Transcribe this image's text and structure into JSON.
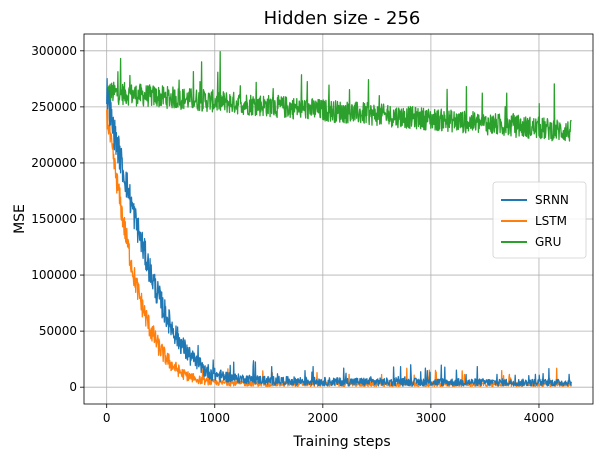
{
  "chart_data": {
    "type": "line",
    "title": "Hidden size - 256",
    "xlabel": "Training steps",
    "ylabel": "MSE",
    "xlim": [
      -210,
      4500
    ],
    "ylim": [
      -15000,
      315000
    ],
    "xticks": [
      0,
      1000,
      2000,
      3000,
      4000
    ],
    "yticks": [
      0,
      50000,
      100000,
      150000,
      200000,
      250000,
      300000
    ],
    "grid": true,
    "legend_position": "center-right",
    "x_max": 4300,
    "series": [
      {
        "name": "SRNN",
        "color": "#1f77b4",
        "center": [
          [
            0,
            265000
          ],
          [
            50,
            235000
          ],
          [
            100,
            215000
          ],
          [
            150,
            195000
          ],
          [
            200,
            175000
          ],
          [
            250,
            155000
          ],
          [
            300,
            137000
          ],
          [
            350,
            120000
          ],
          [
            400,
            104000
          ],
          [
            450,
            89000
          ],
          [
            500,
            76000
          ],
          [
            550,
            64000
          ],
          [
            600,
            54000
          ],
          [
            650,
            45000
          ],
          [
            700,
            37000
          ],
          [
            750,
            30000
          ],
          [
            800,
            24000
          ],
          [
            900,
            16000
          ],
          [
            1000,
            11000
          ],
          [
            1200,
            8000
          ],
          [
            1500,
            6000
          ],
          [
            2000,
            5000
          ],
          [
            3000,
            4500
          ],
          [
            4300,
            4000
          ]
        ],
        "spread": [
          [
            0,
            15000
          ],
          [
            500,
            12000
          ],
          [
            900,
            7000
          ],
          [
            1200,
            4000
          ],
          [
            4300,
            3000
          ]
        ]
      },
      {
        "name": "LSTM",
        "color": "#ff7f0e",
        "center": [
          [
            0,
            245000
          ],
          [
            50,
            210000
          ],
          [
            100,
            180000
          ],
          [
            150,
            150000
          ],
          [
            200,
            124000
          ],
          [
            250,
            100000
          ],
          [
            300,
            82000
          ],
          [
            350,
            66000
          ],
          [
            400,
            53000
          ],
          [
            450,
            42000
          ],
          [
            500,
            33000
          ],
          [
            550,
            26000
          ],
          [
            600,
            20000
          ],
          [
            700,
            12000
          ],
          [
            800,
            8000
          ],
          [
            900,
            5500
          ],
          [
            1000,
            4000
          ],
          [
            1500,
            3000
          ],
          [
            4300,
            2500
          ]
        ],
        "spread": [
          [
            0,
            12000
          ],
          [
            400,
            10000
          ],
          [
            700,
            5000
          ],
          [
            1000,
            2500
          ],
          [
            4300,
            2000
          ]
        ]
      },
      {
        "name": "GRU",
        "color": "#2ca02c",
        "center": [
          [
            0,
            263000
          ],
          [
            500,
            259000
          ],
          [
            1000,
            255000
          ],
          [
            1500,
            251000
          ],
          [
            2000,
            247000
          ],
          [
            2500,
            243000
          ],
          [
            3000,
            239000
          ],
          [
            3500,
            235000
          ],
          [
            4000,
            231000
          ],
          [
            4300,
            228000
          ]
        ],
        "spread": [
          [
            0,
            10000
          ],
          [
            4300,
            10000
          ]
        ]
      }
    ]
  }
}
